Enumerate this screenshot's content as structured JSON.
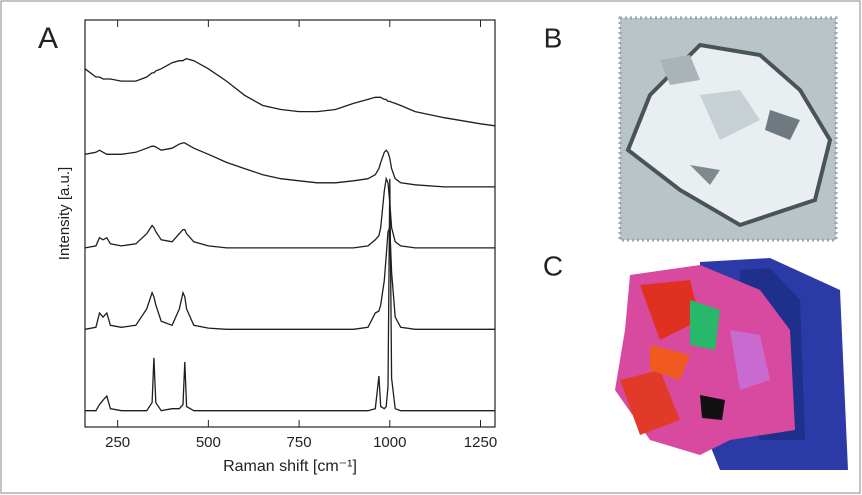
{
  "figure_labels": {
    "a": "A",
    "b": "B",
    "c": "C"
  },
  "chart_data": {
    "type": "line",
    "x_label": "Raman shift  [cm⁻¹]",
    "y_label": "Intensity  [a.u.]",
    "x": [
      160,
      190,
      200,
      210,
      220,
      230,
      260,
      300,
      330,
      345,
      350,
      355,
      370,
      400,
      420,
      430,
      435,
      440,
      460,
      500,
      550,
      600,
      650,
      700,
      750,
      800,
      850,
      900,
      940,
      960,
      970,
      975,
      985,
      990,
      995,
      1000,
      1005,
      1015,
      1030,
      1070,
      1150,
      1250,
      1290
    ],
    "series": [
      {
        "color": "#1e1e1e",
        "values": [
          88,
          86,
          86,
          85.5,
          85.5,
          85.5,
          85,
          85,
          86,
          87,
          87,
          87.5,
          88,
          89.5,
          90,
          90,
          90.3,
          90.5,
          90,
          88,
          85,
          81.5,
          79,
          78,
          77.5,
          77.5,
          78,
          79.5,
          80.5,
          81,
          81,
          81,
          80.5,
          80.5,
          80,
          80,
          79.8,
          79.5,
          79,
          77.5,
          76,
          74.5,
          74
        ]
      },
      {
        "color": "#1e1e1e",
        "values": [
          67,
          67.5,
          68,
          67.5,
          67,
          67,
          67,
          67.5,
          68.5,
          69,
          69,
          68.8,
          68,
          68.5,
          69.5,
          69.8,
          69.8,
          69.5,
          68.5,
          67,
          65,
          63.5,
          62,
          61,
          60.5,
          60,
          60,
          60.5,
          61,
          62,
          63.5,
          65,
          67.5,
          68,
          67.5,
          66,
          63.5,
          61,
          60,
          59.5,
          59,
          59,
          59
        ]
      },
      {
        "color": "#1e1e1e",
        "values": [
          44,
          44.5,
          46.5,
          46,
          46.5,
          45,
          44.5,
          45,
          47.5,
          49.5,
          49,
          48,
          46,
          45.5,
          47.5,
          48.5,
          48.5,
          47.5,
          45.5,
          44.5,
          44,
          44,
          44,
          44,
          44,
          44,
          44,
          44,
          44.5,
          46,
          47,
          49,
          58,
          61,
          60,
          55,
          49,
          45.5,
          44.5,
          44,
          44,
          44,
          44
        ]
      },
      {
        "color": "#1e1e1e",
        "values": [
          24,
          24.5,
          28,
          27,
          28,
          25,
          24.5,
          25,
          29,
          33,
          32,
          30,
          26,
          25,
          29,
          33,
          32,
          29,
          25,
          24.3,
          24,
          24,
          24,
          24,
          24,
          24,
          24,
          24,
          24.5,
          28,
          28.5,
          30,
          36,
          42,
          48,
          49,
          38,
          27,
          24.5,
          24,
          24,
          24,
          24
        ]
      },
      {
        "color": "#1e1e1e",
        "values": [
          4,
          4,
          5.5,
          6.6,
          7.6,
          4.5,
          4,
          4,
          4,
          6,
          17,
          6,
          4,
          4.5,
          4.5,
          5.5,
          16,
          5,
          4,
          4,
          4,
          4,
          4,
          4,
          4,
          4,
          4,
          4,
          4,
          4.5,
          12.5,
          5,
          4.5,
          5,
          10,
          61,
          12,
          4.5,
          4,
          4,
          4,
          4,
          4
        ]
      }
    ],
    "xlim": [
      160,
      1290
    ],
    "ylim": [
      0,
      100
    ],
    "xticks": [
      250,
      500,
      750,
      1000,
      1250
    ]
  }
}
